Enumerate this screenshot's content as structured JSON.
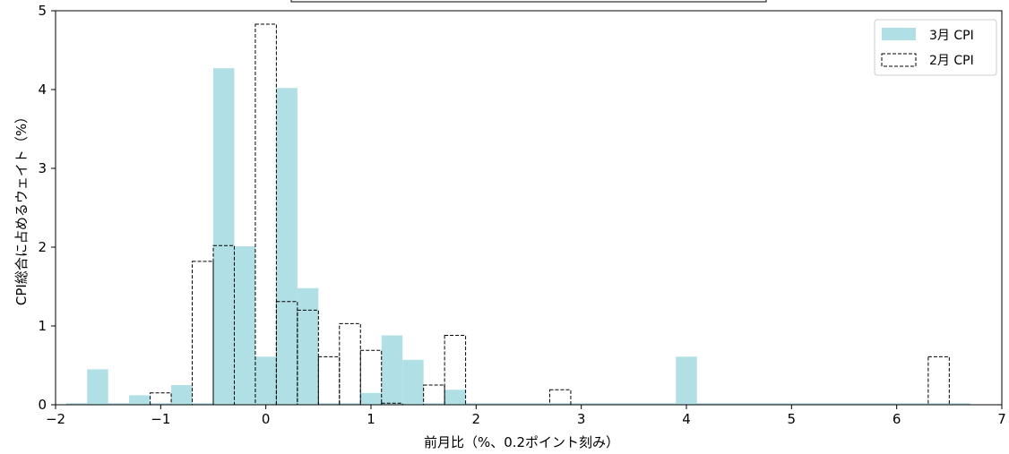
{
  "chart_data": {
    "type": "bar",
    "title": "",
    "xlabel": "前月比（%、0.2ポイント刻み）",
    "ylabel": "CPI総合に占めるウェイト（%）",
    "xlim": [
      -2,
      7
    ],
    "ylim": [
      0,
      5
    ],
    "xticks": [
      -2,
      -1,
      0,
      1,
      2,
      3,
      4,
      5,
      6,
      7
    ],
    "xtick_labels": [
      "−2",
      "−1",
      "0",
      "1",
      "2",
      "3",
      "4",
      "5",
      "6",
      "7"
    ],
    "yticks": [
      0,
      1,
      2,
      3,
      4,
      5
    ],
    "ytick_labels": [
      "0",
      "1",
      "2",
      "3",
      "4",
      "5"
    ],
    "bin_width": 0.2,
    "grid": false,
    "legend_position": "top-right",
    "series": [
      {
        "name": "3月 CPI",
        "style": "filled",
        "color": "#b0dfe5",
        "bins": [
          {
            "x": -1.6,
            "value": 0.45
          },
          {
            "x": -1.2,
            "value": 0.12
          },
          {
            "x": -0.8,
            "value": 0.25
          },
          {
            "x": -0.4,
            "value": 4.27
          },
          {
            "x": -0.2,
            "value": 2.01
          },
          {
            "x": 0.0,
            "value": 0.61
          },
          {
            "x": 0.2,
            "value": 4.02
          },
          {
            "x": 0.4,
            "value": 1.48
          },
          {
            "x": 1.0,
            "value": 0.15
          },
          {
            "x": 1.2,
            "value": 0.88
          },
          {
            "x": 1.4,
            "value": 0.57
          },
          {
            "x": 1.8,
            "value": 0.19
          },
          {
            "x": 4.0,
            "value": 0.61
          }
        ]
      },
      {
        "name": "2月 CPI",
        "style": "dashed-outline",
        "color": "#000000",
        "bins": [
          {
            "x": -1.0,
            "value": 0.15
          },
          {
            "x": -0.6,
            "value": 1.82
          },
          {
            "x": -0.4,
            "value": 2.02
          },
          {
            "x": 0.0,
            "value": 4.83
          },
          {
            "x": 0.2,
            "value": 1.31
          },
          {
            "x": 0.4,
            "value": 1.2
          },
          {
            "x": 0.6,
            "value": 0.61
          },
          {
            "x": 0.8,
            "value": 1.03
          },
          {
            "x": 1.0,
            "value": 0.69
          },
          {
            "x": 1.2,
            "value": 0.02
          },
          {
            "x": 1.6,
            "value": 0.25
          },
          {
            "x": 1.8,
            "value": 0.88
          },
          {
            "x": 2.8,
            "value": 0.19
          },
          {
            "x": 6.4,
            "value": 0.61
          }
        ]
      }
    ]
  }
}
